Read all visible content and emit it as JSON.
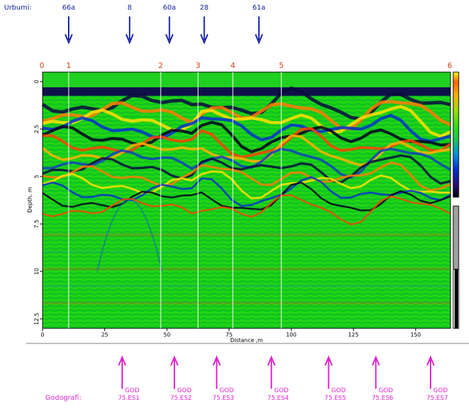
{
  "boreholes_header": {
    "label": "Urbumi:",
    "items": [
      {
        "id": "66a",
        "distance": 10.5
      },
      {
        "id": "8",
        "distance": 35
      },
      {
        "id": "60a",
        "distance": 51
      },
      {
        "id": "28",
        "distance": 65
      },
      {
        "id": "61a",
        "distance": 87
      }
    ]
  },
  "hodographs_footer": {
    "label": "Godografi:",
    "items": [
      {
        "line1": "GOD",
        "line2": "75.ES1",
        "distance": 32
      },
      {
        "line1": "GOD",
        "line2": "75.ES2",
        "distance": 53
      },
      {
        "line1": "GOD",
        "line2": "75.ES3",
        "distance": 70
      },
      {
        "line1": "GOD",
        "line2": "75.ES4",
        "distance": 92
      },
      {
        "line1": "GOD",
        "line2": "75.ES5",
        "distance": 115
      },
      {
        "line1": "GOD",
        "line2": "75.ES6",
        "distance": 134
      },
      {
        "line1": "GOD",
        "line2": "75.ES7",
        "distance": 156
      }
    ]
  },
  "chart_data": {
    "type": "heatmap",
    "xlabel": "Distance ,m",
    "ylabel": "Depth, m",
    "xlim": [
      0,
      164
    ],
    "ylim": [
      -0.5,
      13
    ],
    "x_ticks": [
      0,
      25,
      50,
      75,
      100,
      125,
      150
    ],
    "y_ticks": [
      0,
      2.5,
      5,
      7.5,
      10,
      12.5
    ],
    "x_tick_labels": [
      "0",
      "25",
      "50",
      "75",
      "100",
      "125",
      "150"
    ],
    "y_tick_labels": [
      "0",
      "2.5",
      "5",
      "7.5",
      "10",
      "12.5"
    ],
    "markers": [
      {
        "label": "0",
        "distance": 0
      },
      {
        "label": "1",
        "distance": 10.5
      },
      {
        "label": "2",
        "distance": 47.5
      },
      {
        "label": "3",
        "distance": 62.5
      },
      {
        "label": "4",
        "distance": 76.5
      },
      {
        "label": "5",
        "distance": 96
      },
      {
        "label": "6",
        "distance": 164
      }
    ],
    "colors": {
      "background": "#10d010",
      "marker_line": "#ffffff",
      "marker_label": "#d04010",
      "borehole": "#1020a0",
      "hodograph": "#e020d0",
      "colorbar": [
        "#000010",
        "#2a1070",
        "#0030d0",
        "#0090e0",
        "#20c060",
        "#20e020",
        "#90e000",
        "#ffb000",
        "#ff6000",
        "#ffff00"
      ]
    }
  }
}
